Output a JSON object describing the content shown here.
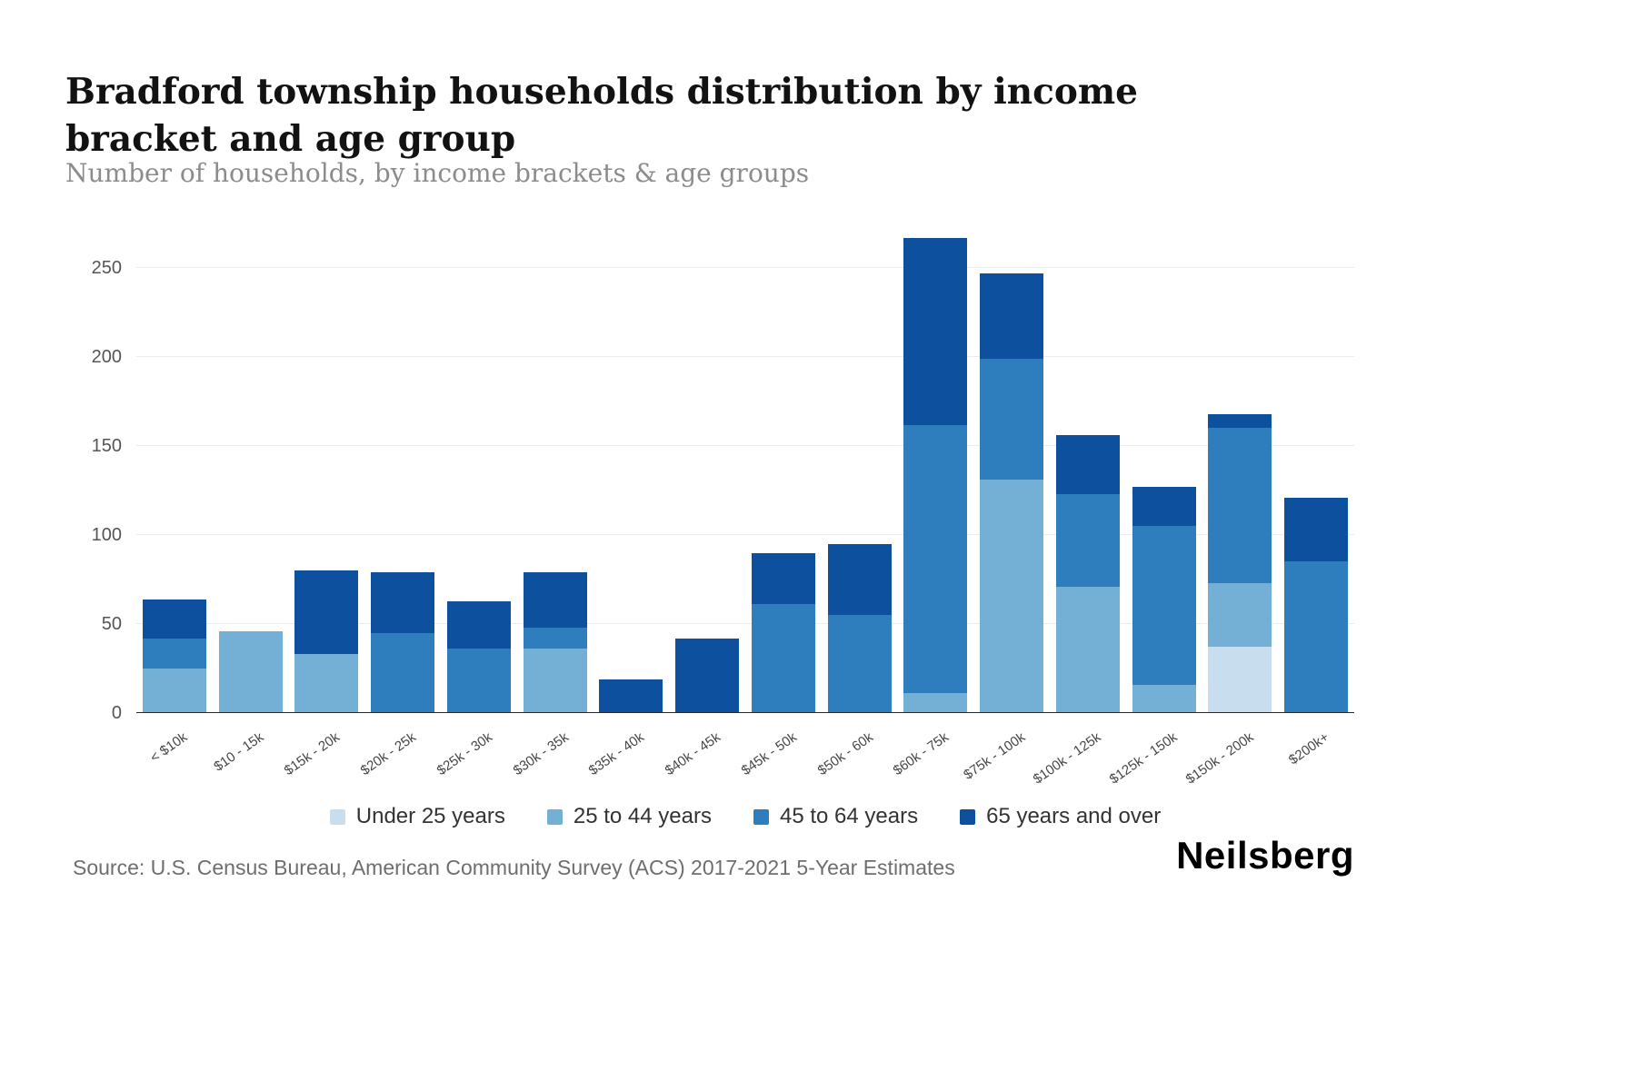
{
  "header": {
    "title": "Bradford township households distribution by income bracket and age group",
    "subtitle": "Number of households, by income brackets & age groups"
  },
  "footer": {
    "source": "Source: U.S. Census Bureau, American Community Survey (ACS) 2017-2021 5-Year Estimates",
    "brand": "Neilsberg"
  },
  "chart_data": {
    "type": "bar",
    "stacked": true,
    "title": "Bradford township households distribution by income bracket and age group",
    "subtitle": "Number of households, by income brackets & age groups",
    "xlabel": "",
    "ylabel": "",
    "ylim": [
      0,
      250
    ],
    "yticks": [
      0,
      50,
      100,
      150,
      200,
      250
    ],
    "grid": true,
    "legend_position": "bottom",
    "categories": [
      "< $10k",
      "$10 - 15k",
      "$15k - 20k",
      "$20k - 25k",
      "$25k - 30k",
      "$30k - 35k",
      "$35k - 40k",
      "$40k - 45k",
      "$45k - 50k",
      "$50k - 60k",
      "$60k - 75k",
      "$75k - 100k",
      "$100k - 125k",
      "$125k - 150k",
      "$150k - 200k",
      "$200k+"
    ],
    "series": [
      {
        "name": "Under 25 years",
        "color": "#c8dded",
        "values": [
          0,
          0,
          0,
          0,
          0,
          0,
          0,
          0,
          0,
          0,
          0,
          0,
          0,
          0,
          37,
          0
        ]
      },
      {
        "name": "25 to 44 years",
        "color": "#74afd6",
        "values": [
          25,
          46,
          33,
          0,
          0,
          36,
          0,
          0,
          0,
          0,
          11,
          131,
          71,
          16,
          36,
          0
        ]
      },
      {
        "name": "45 to 64 years",
        "color": "#2e7ebd",
        "values": [
          17,
          0,
          0,
          45,
          36,
          12,
          0,
          0,
          61,
          55,
          151,
          68,
          52,
          89,
          87,
          85
        ]
      },
      {
        "name": "65 years and over",
        "color": "#0d509e",
        "values": [
          22,
          0,
          47,
          34,
          27,
          31,
          19,
          42,
          29,
          40,
          105,
          48,
          33,
          22,
          8,
          36
        ]
      }
    ]
  }
}
